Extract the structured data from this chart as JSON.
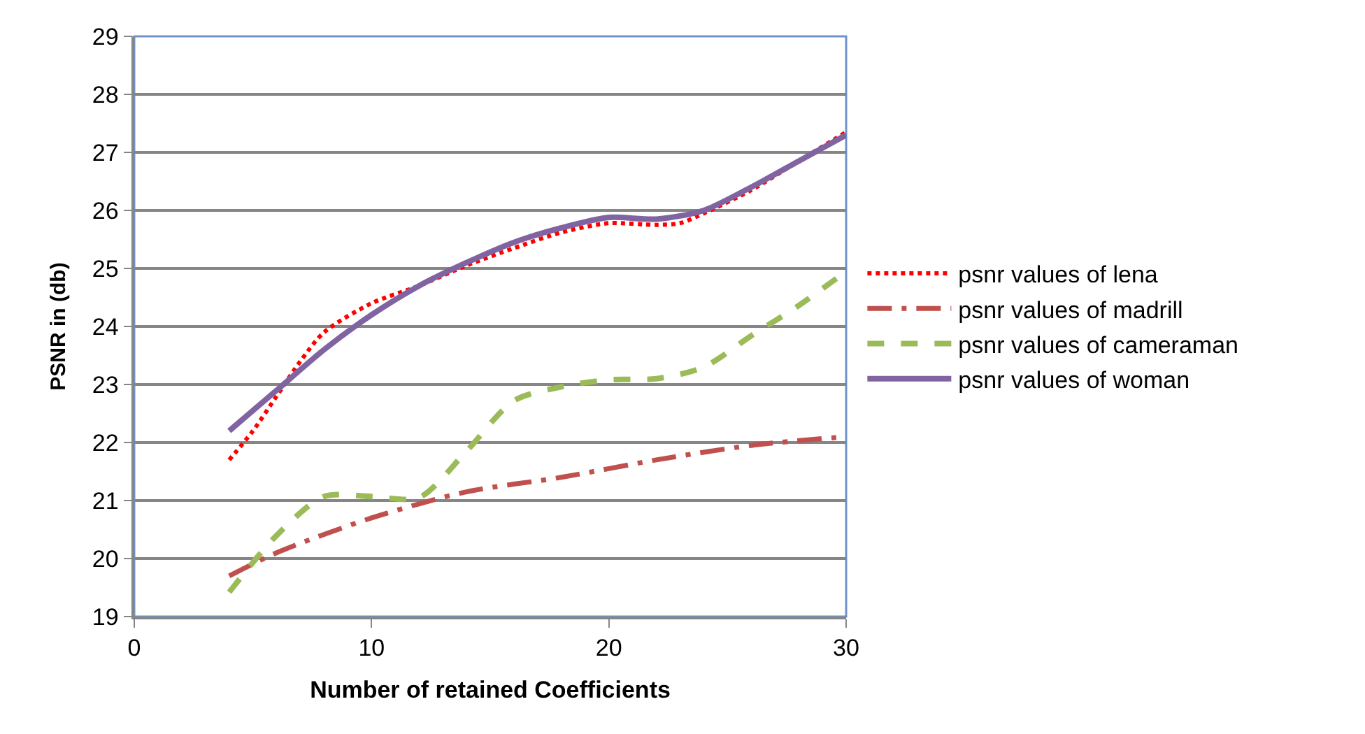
{
  "chart_data": {
    "type": "line",
    "xlabel": "Number of retained Coefficients",
    "ylabel": "PSNR in (db)",
    "xlim": [
      0,
      30
    ],
    "xticks": [
      0,
      10,
      20,
      30
    ],
    "ylim": [
      19,
      29
    ],
    "yticks": [
      19,
      20,
      21,
      22,
      23,
      24,
      25,
      26,
      27,
      28,
      29
    ],
    "grid": "y",
    "legend": "right",
    "marker": "none",
    "series": [
      {
        "name": "psnr values of lena",
        "color": "#ff0000",
        "line_style": "dotted",
        "x": [
          4,
          5,
          6,
          7,
          8,
          10,
          12,
          14,
          16,
          18,
          20,
          22,
          23,
          24,
          26,
          28,
          30
        ],
        "values": [
          21.7,
          22.2,
          22.8,
          23.4,
          23.9,
          24.4,
          24.7,
          25.05,
          25.35,
          25.62,
          25.78,
          25.75,
          25.78,
          25.95,
          26.35,
          26.85,
          27.35
        ]
      },
      {
        "name": "psnr values of madrill",
        "color": "#c0504d",
        "line_style": "dashdot",
        "x": [
          4,
          6,
          10,
          14,
          18,
          22,
          26,
          30
        ],
        "values": [
          19.7,
          20.1,
          20.7,
          21.15,
          21.4,
          21.7,
          21.95,
          22.1
        ]
      },
      {
        "name": "psnr values of cameraman",
        "color": "#9bbb59",
        "line_style": "dashed",
        "x": [
          4,
          6,
          8,
          10,
          12,
          14,
          16,
          18,
          20,
          22,
          24,
          26,
          28,
          30
        ],
        "values": [
          19.42,
          20.4,
          21.07,
          21.07,
          21.05,
          21.85,
          22.72,
          22.96,
          23.08,
          23.1,
          23.3,
          23.84,
          24.36,
          24.95
        ]
      },
      {
        "name": "psnr values of woman",
        "color": "#8064a2",
        "line_style": "solid",
        "x": [
          4,
          6,
          8,
          10,
          12,
          14,
          16,
          18,
          20,
          22,
          24,
          26,
          28,
          30
        ],
        "values": [
          22.2,
          22.9,
          23.6,
          24.2,
          24.7,
          25.1,
          25.45,
          25.7,
          25.88,
          25.85,
          26.0,
          26.4,
          26.85,
          27.3
        ]
      }
    ]
  }
}
